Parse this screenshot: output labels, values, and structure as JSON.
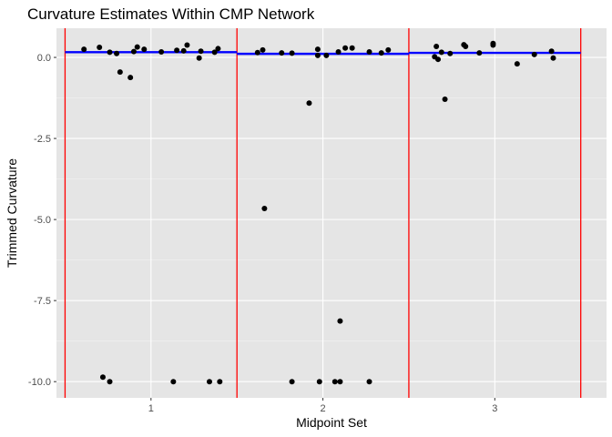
{
  "chart_data": {
    "type": "scatter",
    "title": "Curvature Estimates Within CMP Network",
    "xlabel": "Midpoint Set",
    "ylabel": "Trimmed Curvature",
    "xlim": [
      0.45,
      3.65
    ],
    "ylim": [
      -10.5,
      0.9
    ],
    "x_ticks": [
      1,
      2,
      3
    ],
    "y_ticks": [
      0.0,
      -2.5,
      -5.0,
      -7.5,
      -10.0
    ],
    "x_tick_labels": [
      "1",
      "2",
      "3"
    ],
    "y_tick_labels": [
      "0.0",
      "-2.5",
      "-5.0",
      "-7.5",
      "-10.0"
    ],
    "grid": true,
    "colors": {
      "panel": "#e5e5e5",
      "grid_major": "#ffffff",
      "grid_minor": "#f2f2f2",
      "points": "#000000",
      "boundaries": "#ff0000",
      "means": "#0000ff"
    },
    "boundaries": [
      0.5,
      1.5,
      2.5,
      3.5
    ],
    "group_means": [
      {
        "x0": 0.5,
        "x1": 1.5,
        "y": 0.16
      },
      {
        "x0": 1.5,
        "x1": 2.5,
        "y": 0.11
      },
      {
        "x0": 2.5,
        "x1": 3.5,
        "y": 0.14
      }
    ],
    "points": [
      [
        0.61,
        0.25
      ],
      [
        0.7,
        0.31
      ],
      [
        0.76,
        0.16
      ],
      [
        0.8,
        0.12
      ],
      [
        0.82,
        -0.45
      ],
      [
        0.88,
        -0.62
      ],
      [
        0.9,
        0.18
      ],
      [
        0.92,
        0.32
      ],
      [
        0.96,
        0.25
      ],
      [
        1.06,
        0.17
      ],
      [
        1.15,
        0.22
      ],
      [
        1.19,
        0.2
      ],
      [
        1.21,
        0.38
      ],
      [
        1.28,
        -0.02
      ],
      [
        1.29,
        0.19
      ],
      [
        1.37,
        0.16
      ],
      [
        1.39,
        0.27
      ],
      [
        0.72,
        -9.86
      ],
      [
        0.76,
        -10.0
      ],
      [
        1.13,
        -10.0
      ],
      [
        1.34,
        -10.0
      ],
      [
        1.4,
        -10.0
      ],
      [
        1.62,
        0.15
      ],
      [
        1.65,
        0.23
      ],
      [
        1.66,
        -4.66
      ],
      [
        1.76,
        0.14
      ],
      [
        1.82,
        0.13
      ],
      [
        1.82,
        -10.0
      ],
      [
        1.92,
        -1.41
      ],
      [
        1.97,
        0.25
      ],
      [
        1.97,
        0.06
      ],
      [
        1.98,
        -10.0
      ],
      [
        2.02,
        0.06
      ],
      [
        2.07,
        -10.0
      ],
      [
        2.09,
        0.17
      ],
      [
        2.1,
        -8.13
      ],
      [
        2.1,
        -10.0
      ],
      [
        2.13,
        0.29
      ],
      [
        2.17,
        0.29
      ],
      [
        2.27,
        0.17
      ],
      [
        2.27,
        -10.0
      ],
      [
        2.34,
        0.14
      ],
      [
        2.38,
        0.23
      ],
      [
        2.65,
        0.02
      ],
      [
        2.66,
        0.34
      ],
      [
        2.67,
        -0.06
      ],
      [
        2.69,
        0.16
      ],
      [
        2.71,
        -1.29
      ],
      [
        2.74,
        0.12
      ],
      [
        2.82,
        0.39
      ],
      [
        2.83,
        0.34
      ],
      [
        2.91,
        0.14
      ],
      [
        2.99,
        0.43
      ],
      [
        2.99,
        0.38
      ],
      [
        3.13,
        -0.2
      ],
      [
        3.23,
        0.09
      ],
      [
        3.33,
        0.19
      ],
      [
        3.34,
        -0.02
      ]
    ]
  }
}
